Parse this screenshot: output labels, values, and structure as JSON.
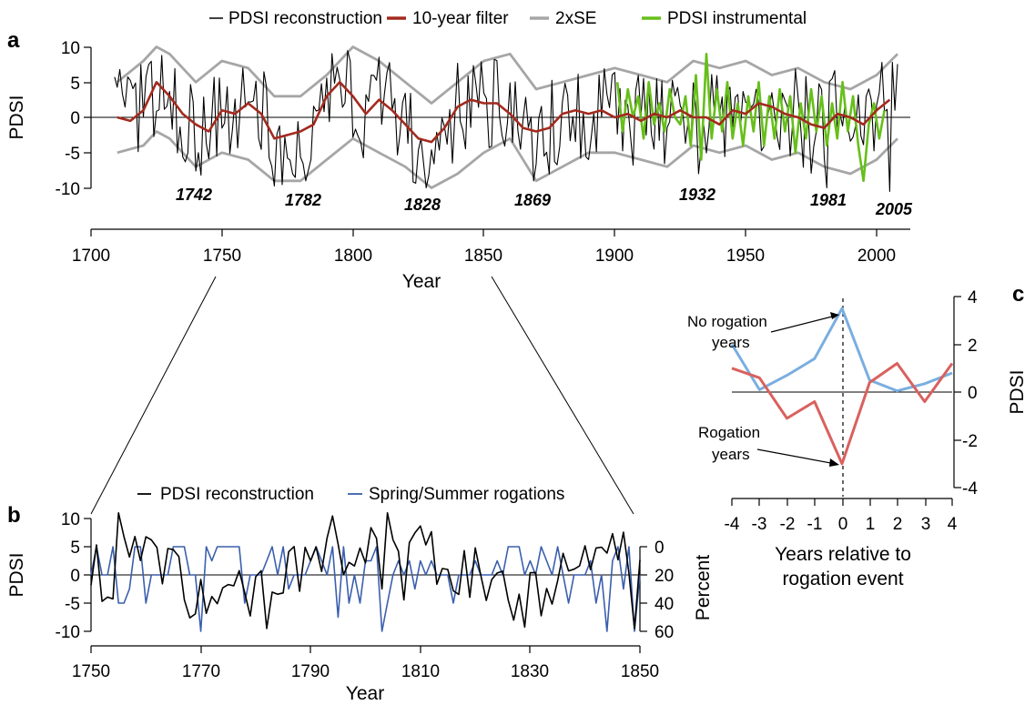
{
  "colors": {
    "reconstruction": "#000000",
    "filter": "#a32a1e",
    "se": "#a6a6a6",
    "instrumental": "#66bf1a",
    "rogations": "#3a5fad",
    "no_rogation": "#7aaee0",
    "rogation": "#d9615e"
  },
  "chart_data": [
    {
      "panel": "a",
      "type": "line",
      "xlabel": "Year",
      "ylabel": "PDSI",
      "xlim": [
        1700,
        2010
      ],
      "ylim": [
        -10,
        10
      ],
      "x_ticks": [
        1700,
        1750,
        1800,
        1850,
        1900,
        1950,
        2000
      ],
      "y_ticks": [
        -10,
        -5,
        0,
        5,
        10
      ],
      "legend": [
        "PDSI reconstruction",
        "10-year filter",
        "2xSE",
        "PDSI instrumental"
      ],
      "legend_position": "top",
      "drought_labels": [
        "1742",
        "1782",
        "1828",
        "1869",
        "1932",
        "1981",
        "2005"
      ],
      "series": [
        {
          "name": "10-year filter",
          "x": [
            1710,
            1715,
            1720,
            1725,
            1730,
            1735,
            1740,
            1745,
            1750,
            1755,
            1760,
            1765,
            1770,
            1775,
            1780,
            1785,
            1790,
            1795,
            1800,
            1805,
            1810,
            1815,
            1820,
            1825,
            1830,
            1835,
            1840,
            1845,
            1850,
            1855,
            1860,
            1865,
            1870,
            1875,
            1880,
            1885,
            1890,
            1895,
            1900,
            1905,
            1910,
            1915,
            1920,
            1925,
            1930,
            1935,
            1940,
            1945,
            1950,
            1955,
            1960,
            1965,
            1970,
            1975,
            1980,
            1985,
            1990,
            1995,
            2000,
            2005
          ],
          "y": [
            0,
            -0.5,
            1,
            5,
            3,
            0.5,
            -1,
            -2,
            1,
            0.5,
            2,
            0.5,
            -3,
            -2.5,
            -2,
            -1,
            3,
            5,
            3,
            0.5,
            2.5,
            1,
            -1,
            -3,
            -3.5,
            -1.5,
            1.5,
            2.5,
            2,
            2,
            0.5,
            -1.5,
            -2,
            -1.5,
            0.5,
            1,
            0.5,
            1,
            0,
            0.5,
            -0.5,
            0.5,
            0,
            1,
            0,
            0,
            -1,
            1,
            0.5,
            2,
            1.5,
            0.5,
            0,
            -1,
            -1.5,
            0.5,
            0,
            -1,
            1,
            2.5
          ]
        },
        {
          "name": "2xSE upper",
          "x": [
            1710,
            1720,
            1725,
            1730,
            1740,
            1750,
            1760,
            1770,
            1780,
            1790,
            1800,
            1810,
            1820,
            1830,
            1840,
            1850,
            1860,
            1870,
            1880,
            1890,
            1900,
            1910,
            1920,
            1930,
            1940,
            1950,
            1960,
            1970,
            1980,
            1990,
            2000,
            2008
          ],
          "y": [
            5,
            8,
            10,
            9,
            5,
            8,
            7,
            3,
            3,
            6,
            10,
            8,
            5,
            2,
            5,
            8,
            9,
            4,
            5,
            6,
            7,
            6,
            5,
            8,
            7,
            8,
            6,
            7,
            5,
            4,
            6,
            9
          ]
        },
        {
          "name": "2xSE lower",
          "x": [
            1710,
            1720,
            1725,
            1730,
            1740,
            1750,
            1760,
            1770,
            1780,
            1790,
            1800,
            1810,
            1820,
            1830,
            1840,
            1850,
            1860,
            1870,
            1880,
            1890,
            1900,
            1910,
            1920,
            1930,
            1940,
            1950,
            1960,
            1970,
            1980,
            1990,
            2000,
            2008
          ],
          "y": [
            -5,
            -4,
            -2,
            -3,
            -7,
            -5,
            -6,
            -9,
            -9,
            -6,
            -3,
            -5,
            -7,
            -10,
            -8,
            -5,
            -3,
            -9,
            -7,
            -5,
            -5,
            -6,
            -7,
            -4,
            -5,
            -4,
            -6,
            -5,
            -7,
            -8,
            -6,
            -3
          ]
        },
        {
          "name": "PDSI instrumental",
          "x": [
            1901,
            1903,
            1905,
            1907,
            1909,
            1911,
            1913,
            1915,
            1917,
            1919,
            1921,
            1923,
            1925,
            1927,
            1929,
            1931,
            1933,
            1935,
            1937,
            1939,
            1941,
            1943,
            1945,
            1947,
            1949,
            1951,
            1953,
            1955,
            1957,
            1959,
            1961,
            1963,
            1965,
            1967,
            1969,
            1971,
            1973,
            1975,
            1977,
            1979,
            1981,
            1983,
            1985,
            1987,
            1989,
            1991,
            1993,
            1995,
            1997,
            1999,
            2001,
            2003
          ],
          "y": [
            5,
            -2,
            4,
            0,
            3,
            -3,
            5,
            -1,
            2,
            -2,
            4,
            0,
            -1,
            3,
            -4,
            6,
            -6,
            9,
            -3,
            4,
            -2,
            5,
            -3,
            2,
            -4,
            3,
            -2,
            5,
            -4,
            3,
            -3,
            4,
            -2,
            3,
            -5,
            2,
            -3,
            4,
            -2,
            3,
            -4,
            2,
            -3,
            5,
            -2,
            3,
            -4,
            -9,
            -1,
            2,
            -3,
            1
          ]
        }
      ]
    },
    {
      "panel": "b",
      "type": "line",
      "xlabel": "Year",
      "ylabel": "PDSI",
      "y2label": "Percent",
      "xlim": [
        1750,
        1850
      ],
      "ylim": [
        -10,
        10
      ],
      "y2lim": [
        60,
        0
      ],
      "x_ticks": [
        1750,
        1770,
        1790,
        1810,
        1830,
        1850
      ],
      "y_ticks": [
        -10,
        -5,
        0,
        5,
        10
      ],
      "y2_ticks": [
        0,
        20,
        40,
        60
      ],
      "legend": [
        "PDSI reconstruction",
        "Spring/Summer rogations"
      ],
      "legend_position": "top"
    },
    {
      "panel": "c",
      "type": "line",
      "xlabel": "Years relative to rogation event",
      "ylabel": "PDSI",
      "xlim": [
        -4,
        4
      ],
      "ylim": [
        -4,
        4
      ],
      "x_ticks": [
        -4,
        -3,
        -2,
        -1,
        0,
        1,
        2,
        3,
        4
      ],
      "y_ticks": [
        -4,
        -2,
        0,
        2,
        4
      ],
      "categories": [
        -4,
        -3,
        -2,
        -1,
        0,
        1,
        2,
        3,
        4
      ],
      "series": [
        {
          "name": "No rogation years",
          "values": [
            2.0,
            0.1,
            0.7,
            1.4,
            3.5,
            0.5,
            0.05,
            0.35,
            0.8
          ]
        },
        {
          "name": "Rogation years",
          "values": [
            1.0,
            0.6,
            -1.1,
            -0.4,
            -3.0,
            0.4,
            1.2,
            -0.4,
            1.2
          ]
        }
      ]
    }
  ],
  "panels": {
    "a": {
      "letter": "a",
      "ylabel": "PDSI",
      "xlabel": "Year",
      "y_ticks": [
        "10",
        "5",
        "0",
        "-5",
        "-10"
      ],
      "x_ticks": [
        "1700",
        "1750",
        "1800",
        "1850",
        "1900",
        "1950",
        "2000"
      ],
      "legend": [
        "PDSI reconstruction",
        "10-year filter",
        "2xSE",
        "PDSI instrumental"
      ],
      "droughts": [
        "1742",
        "1782",
        "1828",
        "1869",
        "1932",
        "1981",
        "2005"
      ]
    },
    "b": {
      "letter": "b",
      "ylabel": "PDSI",
      "y2label": "Percent",
      "xlabel": "Year",
      "y_ticks": [
        "10",
        "5",
        "0",
        "-5",
        "-10"
      ],
      "y2_ticks": [
        "0",
        "20",
        "40",
        "60"
      ],
      "x_ticks": [
        "1750",
        "1770",
        "1790",
        "1810",
        "1830",
        "1850"
      ],
      "legend": [
        "PDSI reconstruction",
        "Spring/Summer rogations"
      ]
    },
    "c": {
      "letter": "c",
      "ylabel": "PDSI",
      "xlabel_line1": "Years relative to",
      "xlabel_line2": "rogation event",
      "y_ticks": [
        "4",
        "2",
        "0",
        "-2",
        "-4"
      ],
      "x_ticks": [
        "-4",
        "-3",
        "-2",
        "-1",
        "0",
        "1",
        "2",
        "3",
        "4"
      ],
      "no_rogation_line1": "No rogation",
      "no_rogation_line2": "years",
      "rogation_line1": "Rogation",
      "rogation_line2": "years"
    }
  }
}
